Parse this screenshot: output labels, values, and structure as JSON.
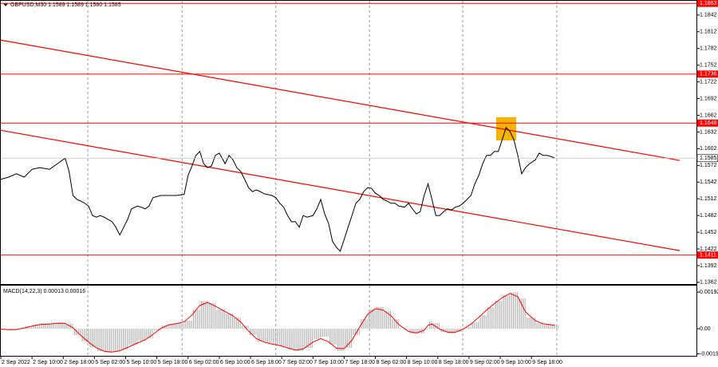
{
  "chart_data": [
    {
      "type": "line",
      "title": "GBPUSD,M30 1.1589 1.1589 1.1580 1.1585",
      "x": [
        0,
        4,
        8,
        12,
        16,
        20,
        25,
        29,
        33,
        35,
        37,
        39,
        41,
        43,
        45,
        47,
        49,
        51,
        53,
        55,
        57,
        59,
        61,
        63,
        65,
        67,
        70,
        72,
        74,
        76,
        78,
        82,
        86,
        90,
        94,
        96,
        98,
        100,
        102,
        104,
        106,
        108,
        110,
        112,
        115,
        117,
        119,
        121,
        123,
        125,
        127,
        129,
        131,
        133,
        135,
        139,
        141,
        143,
        145,
        147,
        149,
        151,
        153,
        155,
        157,
        160,
        162,
        164,
        166,
        168,
        170,
        172,
        174,
        176,
        178,
        180,
        182,
        184,
        186,
        188,
        190,
        192,
        194,
        196,
        198,
        200,
        202,
        204,
        207,
        209,
        211,
        213,
        215,
        217,
        219,
        221,
        223,
        225,
        227,
        229,
        231,
        233,
        235,
        237,
        239,
        241,
        243,
        245,
        247,
        249,
        251,
        253,
        255,
        257,
        259,
        261,
        263,
        265,
        267,
        269,
        271,
        274,
        276,
        278,
        280,
        282,
        284
      ],
      "series": [
        {
          "color": "#000000",
          "values": [
            1.1547,
            1.1551,
            1.1557,
            1.1551,
            1.1565,
            1.1568,
            1.1565,
            1.1575,
            1.1585,
            1.1561,
            1.1518,
            1.1511,
            1.1508,
            1.1504,
            1.1499,
            1.1482,
            1.1479,
            1.1482,
            1.1479,
            1.1475,
            1.1471,
            1.1461,
            1.1447,
            1.1461,
            1.1475,
            1.1494,
            1.1499,
            1.1497,
            1.1494,
            1.1499,
            1.1514,
            1.1518,
            1.1518,
            1.1518,
            1.152,
            1.1554,
            1.1571,
            1.159,
            1.1597,
            1.1575,
            1.1568,
            1.1571,
            1.159,
            1.1594,
            1.1575,
            1.159,
            1.1582,
            1.1568,
            1.1561,
            1.1547,
            1.1532,
            1.1525,
            1.1528,
            1.1525,
            1.1521,
            1.1518,
            1.1514,
            1.1504,
            1.1497,
            1.1482,
            1.1471,
            1.1471,
            1.1461,
            1.1482,
            1.1479,
            1.1482,
            1.1494,
            1.1511,
            1.1485,
            1.1468,
            1.1436,
            1.1425,
            1.1418,
            1.1439,
            1.1461,
            1.1482,
            1.1504,
            1.1511,
            1.1525,
            1.1532,
            1.1531,
            1.1522,
            1.1518,
            1.1511,
            1.1508,
            1.1504,
            1.1504,
            1.1499,
            1.1497,
            1.1504,
            1.1494,
            1.1485,
            1.1489,
            1.1518,
            1.1539,
            1.1511,
            1.1482,
            1.1482,
            1.1489,
            1.1494,
            1.1492,
            1.1497,
            1.1499,
            1.1504,
            1.1511,
            1.1518,
            1.1539,
            1.1554,
            1.1575,
            1.159,
            1.159,
            1.1597,
            1.1597,
            1.1618,
            1.164,
            1.1633,
            1.1618,
            1.159,
            1.1557,
            1.1568,
            1.1575,
            1.1582,
            1.1594,
            1.159,
            1.159,
            1.1588,
            1.1585
          ]
        }
      ],
      "xlim": [
        0,
        357
      ],
      "ylim": [
        1.1359,
        1.1869
      ],
      "yticks": [
        1.1842,
        1.1812,
        1.1782,
        1.1752,
        1.1722,
        1.1692,
        1.1662,
        1.1632,
        1.1602,
        1.1572,
        1.1542,
        1.1512,
        1.1482,
        1.1452,
        1.1422,
        1.1392,
        1.1362
      ],
      "levels": {
        "color": "#ff0000",
        "values": [
          1.1863,
          1.1736,
          1.1648,
          1.1411
        ]
      },
      "current": 1.1585,
      "trend_color": "#ff0000",
      "trendlines": [
        {
          "x": [
            0,
            348
          ],
          "values": [
            1.1797,
            1.1581
          ]
        },
        {
          "x": [
            0,
            348
          ],
          "values": [
            1.1635,
            1.1419
          ]
        }
      ],
      "xgrid": [
        44.6,
        92.9,
        141,
        189,
        236.8,
        285
      ]
    },
    {
      "type": "macd",
      "title": "MACD(14,22,3) 0.00013 0.00016",
      "x": [
        0,
        4,
        8,
        12,
        16,
        20,
        25,
        29,
        33,
        37,
        41,
        45,
        49,
        53,
        57,
        61,
        65,
        70,
        74,
        78,
        82,
        86,
        90,
        94,
        98,
        102,
        106,
        110,
        115,
        119,
        123,
        127,
        131,
        135,
        139,
        143,
        147,
        151,
        155,
        160,
        164,
        168,
        172,
        176,
        180,
        184,
        188,
        192,
        196,
        200,
        204,
        209,
        213,
        217,
        219,
        221,
        225,
        229,
        233,
        237,
        241,
        245,
        249,
        253,
        257,
        261,
        265,
        269,
        274,
        278,
        282,
        284
      ],
      "series": [
        {
          "type": "bar",
          "color": "#b0b0b0",
          "values": [
            -4e-05,
            -8e-05,
            0,
            0.00013,
            0.00021,
            0.00029,
            0.00025,
            0.00033,
            0.00025,
            -0.00033,
            -0.00067,
            -0.00096,
            -0.00117,
            -0.00125,
            -0.00121,
            -0.00109,
            -0.00083,
            -0.00063,
            -0.0005,
            -8e-05,
            0.00017,
            0.00025,
            0.00029,
            0.00042,
            0.001,
            0.00146,
            0.00134,
            0.001,
            0.00079,
            0.00058,
            0.00017,
            -0.00033,
            -0.00067,
            -0.00075,
            -0.00083,
            -0.00092,
            -0.00109,
            -0.00117,
            -0.001,
            -0.00054,
            -0.00042,
            -0.00083,
            -0.00117,
            -0.001,
            -0.00033,
            0.0005,
            0.001,
            0.00113,
            0.00092,
            0.0005,
            0,
            -0.00025,
            -0.00025,
            0,
            0.00038,
            0.00029,
            -0.00017,
            -0.00025,
            -0.00017,
            8e-05,
            0.00033,
            0.00071,
            0.00113,
            0.00146,
            0.00175,
            0.00192,
            0.00159,
            0.00058,
            0.00029,
            0.00021,
            0.00021,
            0.00017
          ]
        },
        {
          "type": "line",
          "color": "#ff0000",
          "values": [
            -2e-05,
            -5e-05,
            -4e-05,
            4e-05,
            0.00014,
            0.00022,
            0.00025,
            0.00029,
            0.00028,
            5e-05,
            -0.00035,
            -0.0007,
            -0.001,
            -0.00118,
            -0.00122,
            -0.00115,
            -0.00098,
            -0.00075,
            -0.00058,
            -0.0003,
            2e-05,
            0.0002,
            0.00027,
            0.00036,
            0.00072,
            0.00122,
            0.00138,
            0.00118,
            0.0009,
            0.00068,
            0.00035,
            -0.00012,
            -0.00052,
            -0.0007,
            -0.0008,
            -0.00088,
            -0.001,
            -0.00112,
            -0.00106,
            -0.0007,
            -0.00052,
            -0.00068,
            -0.00102,
            -0.00104,
            -0.0006,
            0.0001,
            0.00075,
            0.00105,
            0.00098,
            0.00068,
            0.00022,
            -0.00014,
            -0.00022,
            -8e-05,
            0.00018,
            0.00025,
            -2e-05,
            -0.00018,
            -0.00018,
            -2e-05,
            0.00024,
            0.0006,
            0.00098,
            0.00132,
            0.00163,
            0.00185,
            0.00168,
            0.00088,
            0.00042,
            0.00026,
            0.00021,
            0.00018
          ]
        }
      ],
      "xlim": [
        0,
        357
      ],
      "ylim": [
        -0.00146,
        0.0023
      ],
      "yticks": [
        0.00192,
        {
          "value": 0,
          "label": "0.00"
        },
        -0.00131
      ],
      "xticks": [
        {
          "value": 0,
          "label": "2 Sep 2022"
        },
        {
          "value": 16,
          "label": "2 Sep 10:00"
        },
        {
          "value": 32,
          "label": "2 Sep 18:00"
        },
        {
          "value": 48,
          "label": "5 Sep 02:00"
        },
        {
          "value": 64,
          "label": "5 Sep 10:00"
        },
        {
          "value": 80,
          "label": "5 Sep 18:00"
        },
        {
          "value": 96,
          "label": "6 Sep 02:00"
        },
        {
          "value": 112,
          "label": "6 Sep 10:00"
        },
        {
          "value": 128,
          "label": "6 Sep 18:00"
        },
        {
          "value": 144,
          "label": "7 Sep 02:00"
        },
        {
          "value": 160,
          "label": "7 Sep 10:00"
        },
        {
          "value": 176,
          "label": "7 Sep 18:00"
        },
        {
          "value": 192,
          "label": "8 Sep 02:00"
        },
        {
          "value": 208,
          "label": "8 Sep 10:00"
        },
        {
          "value": 224,
          "label": "8 Sep 18:00"
        },
        {
          "value": 240,
          "label": "9 Sep 02:00"
        },
        {
          "value": 256,
          "label": "9 Sep 10:00"
        },
        {
          "value": 272,
          "label": "9 Sep 18:00"
        }
      ],
      "xgrid": [
        44.6,
        92.9,
        141,
        189,
        236.8,
        285
      ]
    }
  ]
}
